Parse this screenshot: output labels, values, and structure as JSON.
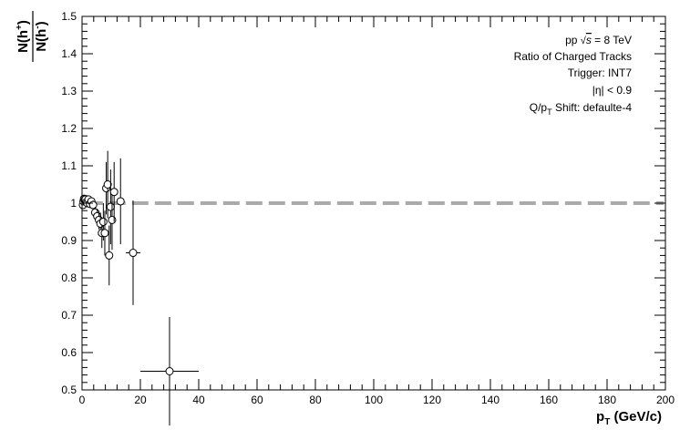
{
  "chart_data": {
    "type": "scatter",
    "title": "",
    "xlabel": "p_T (GeV/c)",
    "ylabel": "N(h+)/N(h-)",
    "xlim": [
      0,
      200
    ],
    "ylim": [
      0.5,
      1.5
    ],
    "x_ticks": [
      0,
      20,
      40,
      60,
      80,
      100,
      120,
      140,
      160,
      180,
      200
    ],
    "y_ticks": [
      0.5,
      0.6,
      0.7,
      0.8,
      0.9,
      1.0,
      1.1,
      1.2,
      1.3,
      1.4,
      1.5
    ],
    "y_tick_labels": [
      "0.5",
      "0.6",
      "0.7",
      "0.8",
      "0.9",
      "1",
      "1.1",
      "1.2",
      "1.3",
      "1.4",
      "1.5"
    ],
    "grid": false,
    "reference_line": {
      "y": 1.0,
      "style": "dashed",
      "color": "#aaaaaa"
    },
    "marker_color": "#000000",
    "annotations": [
      "pp √s = 8 TeV",
      "Ratio of Charged Tracks",
      "Trigger: INT7",
      "|η| < 0.9",
      "Q/p_T Shift: defaulte-4"
    ],
    "points": [
      {
        "x": 0.3,
        "y": 0.995,
        "xerr": 0.1,
        "yerr": 0.004
      },
      {
        "x": 0.5,
        "y": 1.005,
        "xerr": 0.1,
        "yerr": 0.004
      },
      {
        "x": 0.7,
        "y": 1.012,
        "xerr": 0.1,
        "yerr": 0.004
      },
      {
        "x": 0.9,
        "y": 1.008,
        "xerr": 0.1,
        "yerr": 0.004
      },
      {
        "x": 1.2,
        "y": 1.01,
        "xerr": 0.15,
        "yerr": 0.005
      },
      {
        "x": 1.5,
        "y": 1.003,
        "xerr": 0.15,
        "yerr": 0.005
      },
      {
        "x": 1.8,
        "y": 1.0,
        "xerr": 0.15,
        "yerr": 0.006
      },
      {
        "x": 2.2,
        "y": 1.01,
        "xerr": 0.2,
        "yerr": 0.006
      },
      {
        "x": 2.7,
        "y": 0.998,
        "xerr": 0.25,
        "yerr": 0.008
      },
      {
        "x": 3.2,
        "y": 1.005,
        "xerr": 0.25,
        "yerr": 0.01
      },
      {
        "x": 3.8,
        "y": 0.995,
        "xerr": 0.3,
        "yerr": 0.012
      },
      {
        "x": 4.5,
        "y": 0.975,
        "xerr": 0.35,
        "yerr": 0.015
      },
      {
        "x": 5.2,
        "y": 0.965,
        "xerr": 0.35,
        "yerr": 0.02
      },
      {
        "x": 5.8,
        "y": 0.955,
        "xerr": 0.3,
        "yerr": 0.025
      },
      {
        "x": 6.3,
        "y": 0.945,
        "xerr": 0.25,
        "yerr": 0.03
      },
      {
        "x": 6.8,
        "y": 0.92,
        "xerr": 0.25,
        "yerr": 0.04
      },
      {
        "x": 7.3,
        "y": 0.95,
        "xerr": 0.25,
        "yerr": 0.05
      },
      {
        "x": 7.8,
        "y": 0.92,
        "xerr": 0.25,
        "yerr": 0.06
      },
      {
        "x": 8.3,
        "y": 1.04,
        "xerr": 0.3,
        "yerr": 0.07
      },
      {
        "x": 8.8,
        "y": 1.05,
        "xerr": 0.3,
        "yerr": 0.09
      },
      {
        "x": 9.3,
        "y": 0.86,
        "xerr": 0.3,
        "yerr": 0.08
      },
      {
        "x": 9.8,
        "y": 0.99,
        "xerr": 0.35,
        "yerr": 0.1
      },
      {
        "x": 10.3,
        "y": 0.955,
        "xerr": 0.35,
        "yerr": 0.08
      },
      {
        "x": 11.0,
        "y": 1.03,
        "xerr": 0.5,
        "yerr": 0.08
      },
      {
        "x": 13.2,
        "y": 1.005,
        "xerr": 1.2,
        "yerr": 0.115
      },
      {
        "x": 17.5,
        "y": 0.867,
        "xerr": 2.5,
        "yerr": 0.14
      },
      {
        "x": 30.0,
        "y": 0.55,
        "xerr": 10.0,
        "yerr": 0.145
      }
    ]
  }
}
